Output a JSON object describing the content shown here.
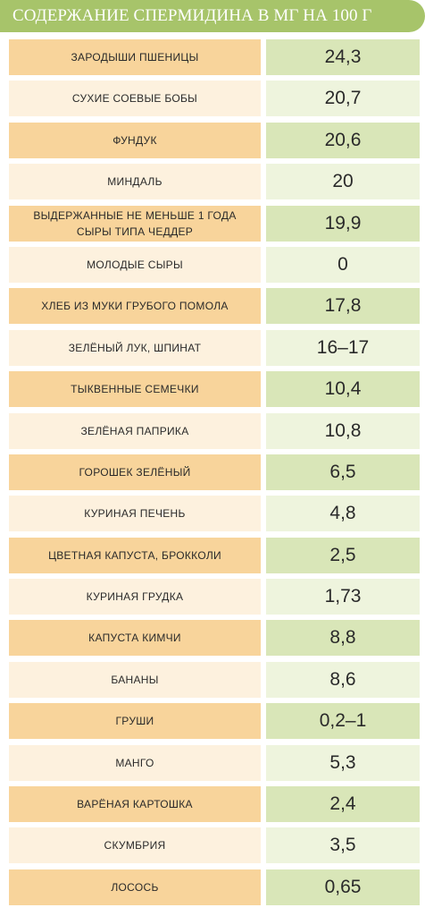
{
  "title": "СОДЕРЖАНИЕ СПЕРМИДИНА В МГ НА 100 Г",
  "rows": [
    {
      "name": "ЗАРОДЫШИ ПШЕНИЦЫ",
      "value": "24,3"
    },
    {
      "name": "СУХИЕ СОЕВЫЕ БОБЫ",
      "value": "20,7"
    },
    {
      "name": "ФУНДУК",
      "value": "20,6"
    },
    {
      "name": "МИНДАЛЬ",
      "value": "20"
    },
    {
      "name": "ВЫДЕРЖАННЫЕ НЕ МЕНЬШЕ 1 ГОДА СЫРЫ ТИПА ЧЕДДЕР",
      "value": "19,9"
    },
    {
      "name": "МОЛОДЫЕ СЫРЫ",
      "value": "0"
    },
    {
      "name": "ХЛЕБ ИЗ МУКИ ГРУБОГО  ПОМОЛА",
      "value": "17,8"
    },
    {
      "name": "ЗЕЛЁНЫЙ ЛУК, ШПИНАТ",
      "value": "16–17"
    },
    {
      "name": "ТЫКВЕННЫЕ СЕМЕЧКИ",
      "value": "10,4"
    },
    {
      "name": "ЗЕЛЁНАЯ ПАПРИКА",
      "value": "10,8"
    },
    {
      "name": "ГОРОШЕК ЗЕЛЁНЫЙ",
      "value": "6,5"
    },
    {
      "name": "КУРИНАЯ ПЕЧЕНЬ",
      "value": "4,8"
    },
    {
      "name": "ЦВЕТНАЯ КАПУСТА, БРОККОЛИ",
      "value": "2,5"
    },
    {
      "name": "КУРИНАЯ ГРУДКА",
      "value": "1,73"
    },
    {
      "name": "КАПУСТА КИМЧИ",
      "value": "8,8"
    },
    {
      "name": "БАНАНЫ",
      "value": "8,6"
    },
    {
      "name": "ГРУШИ",
      "value": "0,2–1"
    },
    {
      "name": "МАНГО",
      "value": "5,3"
    },
    {
      "name": "ВАРЁНАЯ КАРТОШКА",
      "value": "2,4"
    },
    {
      "name": "СКУМБРИЯ",
      "value": "3,5"
    },
    {
      "name": "ЛОСОСЬ",
      "value": "0,65"
    }
  ],
  "colors": {
    "header": "#a7c46a",
    "name_dark": "#f8d49b",
    "name_light": "#fdf1de",
    "value_dark": "#d9e6b8",
    "value_light": "#eef4dd"
  }
}
